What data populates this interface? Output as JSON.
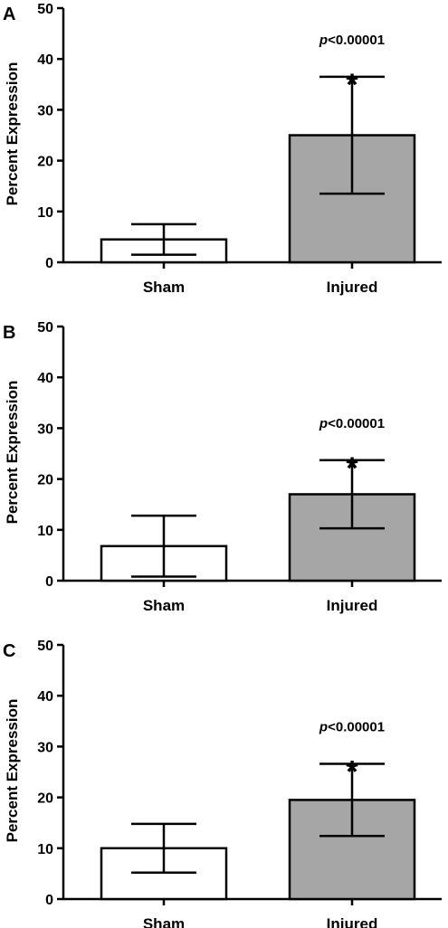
{
  "figure": {
    "colors": {
      "sham_fill": "#ffffff",
      "injured_fill": "#a6a6a6",
      "stroke": "#000000"
    }
  },
  "chart_data": [
    {
      "type": "bar",
      "panel": "A",
      "categories": [
        "Sham",
        "Injured"
      ],
      "values": [
        4.5,
        25
      ],
      "error": [
        3,
        11.5
      ],
      "ylabel": "Percent Expression",
      "ylim": [
        0,
        50
      ],
      "yticks": [
        "0",
        "10",
        "20",
        "30",
        "40",
        "50"
      ],
      "significance": {
        "label_prefix": "p",
        "label_suffix": "<0.00001",
        "marker": "*"
      }
    },
    {
      "type": "bar",
      "panel": "B",
      "categories": [
        "Sham",
        "Injured"
      ],
      "values": [
        6.8,
        17
      ],
      "error": [
        6,
        6.7
      ],
      "ylabel": "Percent Expression",
      "ylim": [
        0,
        50
      ],
      "yticks": [
        "0",
        "10",
        "20",
        "30",
        "40",
        "50"
      ],
      "significance": {
        "label_prefix": "p",
        "label_suffix": "<0.00001",
        "marker": "*"
      }
    },
    {
      "type": "bar",
      "panel": "C",
      "categories": [
        "Sham",
        "Injured"
      ],
      "values": [
        10,
        19.5
      ],
      "error": [
        4.8,
        7.1
      ],
      "ylabel": "Percent Expression",
      "ylim": [
        0,
        50
      ],
      "yticks": [
        "0",
        "10",
        "20",
        "30",
        "40",
        "50"
      ],
      "significance": {
        "label_prefix": "p",
        "label_suffix": "<0.00001",
        "marker": "*"
      }
    }
  ]
}
